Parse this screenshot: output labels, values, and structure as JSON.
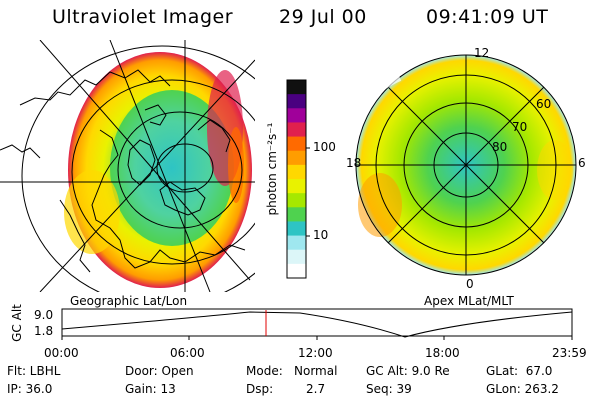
{
  "header": {
    "title": "Ultraviolet Imager",
    "date": "29 Jul 00",
    "time": "09:41:09 UT"
  },
  "left_panel": {
    "label": "Geographic Lat/Lon"
  },
  "right_panel": {
    "label": "Apex MLat/MLT",
    "mlt_labels": [
      "12",
      "6",
      "0",
      "18"
    ],
    "lat_labels": [
      "60",
      "70",
      "80"
    ]
  },
  "colorbar": {
    "unit_label": "photon cm⁻²s⁻¹",
    "ticks": [
      "100",
      "10"
    ],
    "colors": [
      "#101010",
      "#4a0080",
      "#a0009a",
      "#e0204e",
      "#ff6a00",
      "#ff9d00",
      "#ffd800",
      "#e9f200",
      "#a6e800",
      "#4fd24f",
      "#2ec4c4",
      "#9fe7ef",
      "#dcf6f8",
      "#ffffff"
    ]
  },
  "timeline": {
    "axis_label": "GC Alt",
    "y_ticks": [
      "9.0",
      "1.8"
    ],
    "x_ticks": [
      "00:00",
      "06:00",
      "12:00",
      "18:00",
      "23:59"
    ],
    "current_fraction": 0.4
  },
  "info": {
    "row1": {
      "flt": "Flt: LBHL",
      "door": "Door: Open",
      "mode_key": "Mode:",
      "mode_val": "Normal",
      "gcalt": "GC Alt: 9.0 Re",
      "glat": "GLat:  67.0"
    },
    "row2": {
      "ip": "IP: 36.0",
      "gain": "Gain: 13",
      "dsp_key": "Dsp:",
      "dsp_val": "2.7",
      "seq": "Seq: 39",
      "glon": "GLon: 263.2"
    }
  }
}
